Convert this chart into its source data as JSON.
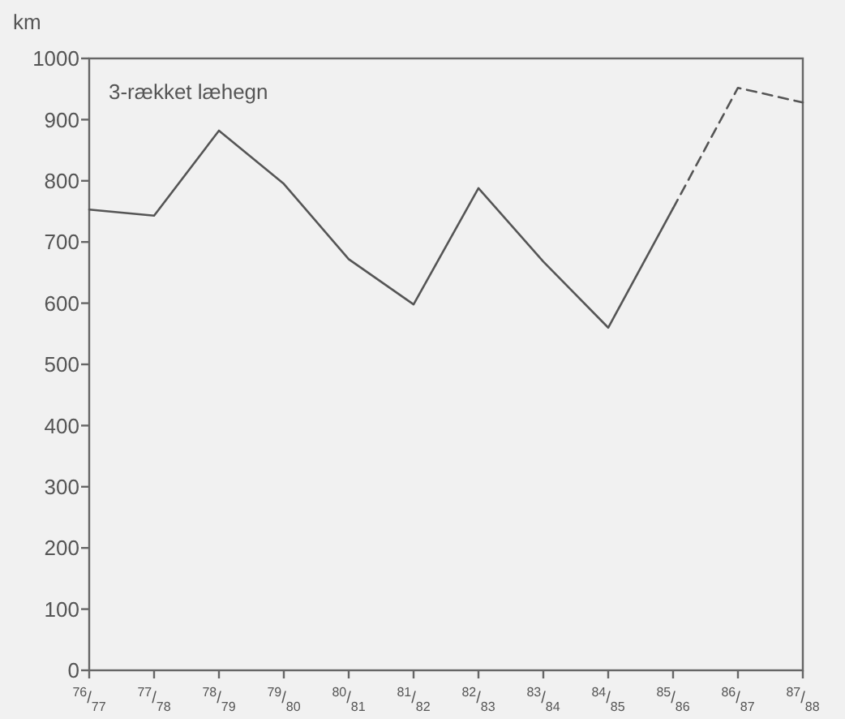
{
  "chart_data": {
    "type": "line",
    "ylabel": "km",
    "annotations": [
      "3-rækket læhegn"
    ],
    "categories": [
      "$^{76}$/$_{77}$",
      "$^{77}$/$_{78}$",
      "$^{78}$/$_{79}$",
      "$^{79}$/$_{80}$",
      "$^{80}$/$_{81}$",
      "$^{81}$/$_{82}$",
      "$^{82}$/$_{83}$",
      "$^{83}$/$_{84}$",
      "$^{84}$/$_{85}$",
      "$^{85}$/$_{86}$",
      "$^{86}$/$_{87}$",
      "$^{87}$/$_{88}$"
    ],
    "series": [
      {
        "color": "#555555",
        "line_style": "solid",
        "values": [
          753,
          743,
          882,
          795,
          672,
          598,
          788,
          668,
          560,
          755,
          null,
          null
        ]
      },
      {
        "color": "#555555",
        "line_style": "dashed",
        "values": [
          null,
          null,
          null,
          null,
          null,
          null,
          null,
          null,
          null,
          755,
          952,
          928
        ]
      }
    ],
    "ylim": [
      0,
      1000
    ],
    "yticks": [
      0,
      100,
      200,
      300,
      400,
      500,
      600,
      700,
      800,
      900,
      1000
    ],
    "grid": false,
    "marker": "none"
  }
}
